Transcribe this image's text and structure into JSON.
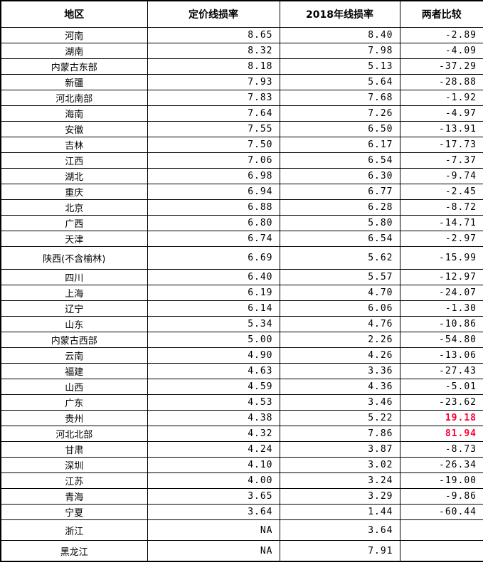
{
  "colors": {
    "background": "#ffffff",
    "text": "#000000",
    "border": "#000000",
    "highlight": "#ff0033"
  },
  "chart_data": {
    "type": "table",
    "columns": [
      "地区",
      "定价线损率",
      "2018年线损率",
      "两者比较"
    ],
    "rows": [
      {
        "region": "河南",
        "pricing_loss_rate": "8.65",
        "loss_rate_2018": "8.40",
        "comparison": "-2.89",
        "highlight": false,
        "tall": ""
      },
      {
        "region": "湖南",
        "pricing_loss_rate": "8.32",
        "loss_rate_2018": "7.98",
        "comparison": "-4.09",
        "highlight": false,
        "tall": ""
      },
      {
        "region": "内蒙古东部",
        "pricing_loss_rate": "8.18",
        "loss_rate_2018": "5.13",
        "comparison": "-37.29",
        "highlight": false,
        "tall": ""
      },
      {
        "region": "新疆",
        "pricing_loss_rate": "7.93",
        "loss_rate_2018": "5.64",
        "comparison": "-28.88",
        "highlight": false,
        "tall": ""
      },
      {
        "region": "河北南部",
        "pricing_loss_rate": "7.83",
        "loss_rate_2018": "7.68",
        "comparison": "-1.92",
        "highlight": false,
        "tall": ""
      },
      {
        "region": "海南",
        "pricing_loss_rate": "7.64",
        "loss_rate_2018": "7.26",
        "comparison": "-4.97",
        "highlight": false,
        "tall": ""
      },
      {
        "region": "安徽",
        "pricing_loss_rate": "7.55",
        "loss_rate_2018": "6.50",
        "comparison": "-13.91",
        "highlight": false,
        "tall": ""
      },
      {
        "region": "吉林",
        "pricing_loss_rate": "7.50",
        "loss_rate_2018": "6.17",
        "comparison": "-17.73",
        "highlight": false,
        "tall": ""
      },
      {
        "region": "江西",
        "pricing_loss_rate": "7.06",
        "loss_rate_2018": "6.54",
        "comparison": "-7.37",
        "highlight": false,
        "tall": ""
      },
      {
        "region": "湖北",
        "pricing_loss_rate": "6.98",
        "loss_rate_2018": "6.30",
        "comparison": "-9.74",
        "highlight": false,
        "tall": ""
      },
      {
        "region": "重庆",
        "pricing_loss_rate": "6.94",
        "loss_rate_2018": "6.77",
        "comparison": "-2.45",
        "highlight": false,
        "tall": ""
      },
      {
        "region": "北京",
        "pricing_loss_rate": "6.88",
        "loss_rate_2018": "6.28",
        "comparison": "-8.72",
        "highlight": false,
        "tall": ""
      },
      {
        "region": "广西",
        "pricing_loss_rate": "6.80",
        "loss_rate_2018": "5.80",
        "comparison": "-14.71",
        "highlight": false,
        "tall": ""
      },
      {
        "region": "天津",
        "pricing_loss_rate": "6.74",
        "loss_rate_2018": "6.54",
        "comparison": "-2.97",
        "highlight": false,
        "tall": ""
      },
      {
        "region": "陕西(不含榆林)",
        "pricing_loss_rate": "6.69",
        "loss_rate_2018": "5.62",
        "comparison": "-15.99",
        "highlight": false,
        "tall": "mid"
      },
      {
        "region": "四川",
        "pricing_loss_rate": "6.40",
        "loss_rate_2018": "5.57",
        "comparison": "-12.97",
        "highlight": false,
        "tall": ""
      },
      {
        "region": "上海",
        "pricing_loss_rate": "6.19",
        "loss_rate_2018": "4.70",
        "comparison": "-24.07",
        "highlight": false,
        "tall": ""
      },
      {
        "region": "辽宁",
        "pricing_loss_rate": "6.14",
        "loss_rate_2018": "6.06",
        "comparison": "-1.30",
        "highlight": false,
        "tall": ""
      },
      {
        "region": "山东",
        "pricing_loss_rate": "5.34",
        "loss_rate_2018": "4.76",
        "comparison": "-10.86",
        "highlight": false,
        "tall": ""
      },
      {
        "region": "内蒙古西部",
        "pricing_loss_rate": "5.00",
        "loss_rate_2018": "2.26",
        "comparison": "-54.80",
        "highlight": false,
        "tall": ""
      },
      {
        "region": "云南",
        "pricing_loss_rate": "4.90",
        "loss_rate_2018": "4.26",
        "comparison": "-13.06",
        "highlight": false,
        "tall": ""
      },
      {
        "region": "福建",
        "pricing_loss_rate": "4.63",
        "loss_rate_2018": "3.36",
        "comparison": "-27.43",
        "highlight": false,
        "tall": ""
      },
      {
        "region": "山西",
        "pricing_loss_rate": "4.59",
        "loss_rate_2018": "4.36",
        "comparison": "-5.01",
        "highlight": false,
        "tall": ""
      },
      {
        "region": "广东",
        "pricing_loss_rate": "4.53",
        "loss_rate_2018": "3.46",
        "comparison": "-23.62",
        "highlight": false,
        "tall": ""
      },
      {
        "region": "贵州",
        "pricing_loss_rate": "4.38",
        "loss_rate_2018": "5.22",
        "comparison": "19.18",
        "highlight": true,
        "tall": ""
      },
      {
        "region": "河北北部",
        "pricing_loss_rate": "4.32",
        "loss_rate_2018": "7.86",
        "comparison": "81.94",
        "highlight": true,
        "tall": ""
      },
      {
        "region": "甘肃",
        "pricing_loss_rate": "4.24",
        "loss_rate_2018": "3.87",
        "comparison": "-8.73",
        "highlight": false,
        "tall": ""
      },
      {
        "region": "深圳",
        "pricing_loss_rate": "4.10",
        "loss_rate_2018": "3.02",
        "comparison": "-26.34",
        "highlight": false,
        "tall": ""
      },
      {
        "region": "江苏",
        "pricing_loss_rate": "4.00",
        "loss_rate_2018": "3.24",
        "comparison": "-19.00",
        "highlight": false,
        "tall": ""
      },
      {
        "region": "青海",
        "pricing_loss_rate": "3.65",
        "loss_rate_2018": "3.29",
        "comparison": "-9.86",
        "highlight": false,
        "tall": ""
      },
      {
        "region": "宁夏",
        "pricing_loss_rate": "3.64",
        "loss_rate_2018": "1.44",
        "comparison": "-60.44",
        "highlight": false,
        "tall": ""
      },
      {
        "region": "浙江",
        "pricing_loss_rate": "NA",
        "loss_rate_2018": "3.64",
        "comparison": "",
        "highlight": false,
        "tall": "end"
      },
      {
        "region": "黑龙江",
        "pricing_loss_rate": "NA",
        "loss_rate_2018": "7.91",
        "comparison": "",
        "highlight": false,
        "tall": "end"
      }
    ]
  }
}
